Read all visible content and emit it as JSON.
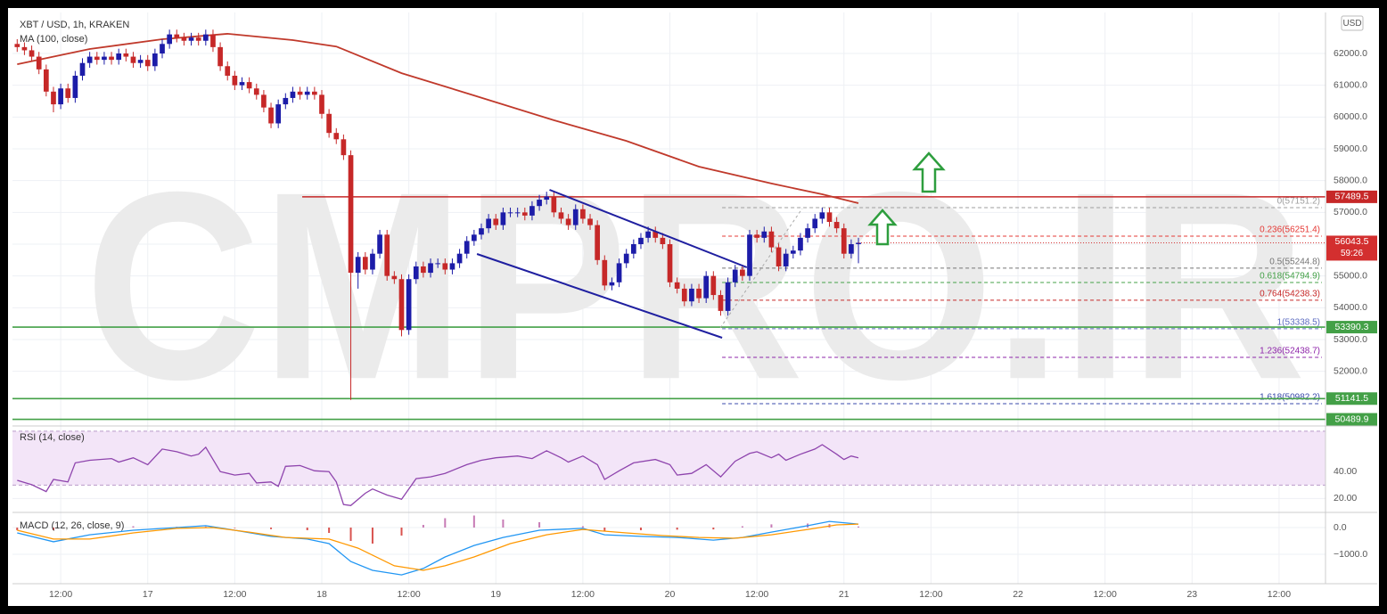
{
  "header": {
    "title": "XBT / USD, 1h, KRAKEN",
    "currency": "USD",
    "watermark": "CMPRO.IR"
  },
  "chart_data": [
    {
      "type": "candlestick",
      "ma_label": "MA (100, close)",
      "xlim": [
        -0.65,
        180.4
      ],
      "xticks": [
        {
          "value": 6,
          "label": "12:00"
        },
        {
          "value": 18,
          "label": "17"
        },
        {
          "value": 30,
          "label": "12:00"
        },
        {
          "value": 42,
          "label": "18"
        },
        {
          "value": 54,
          "label": "12:00"
        },
        {
          "value": 66,
          "label": "19"
        },
        {
          "value": 78,
          "label": "12:00"
        },
        {
          "value": 90,
          "label": "20"
        },
        {
          "value": 102,
          "label": "12:00"
        },
        {
          "value": 114,
          "label": "21"
        },
        {
          "value": 126,
          "label": "12:00"
        },
        {
          "value": 138,
          "label": "22"
        },
        {
          "value": 150,
          "label": "12:00"
        },
        {
          "value": 162,
          "label": "23"
        },
        {
          "value": 174,
          "label": "12:00"
        }
      ],
      "ylim": [
        50280,
        63290
      ],
      "yticks": [
        {
          "value": 52000,
          "label": "52000.0"
        },
        {
          "value": 53000,
          "label": "53000.0"
        },
        {
          "value": 54000,
          "label": "54000.0"
        },
        {
          "value": 55000,
          "label": "55000.0"
        },
        {
          "value": 56000,
          "label": "56000.0"
        },
        {
          "value": 57000,
          "label": "57000.0"
        },
        {
          "value": 58000,
          "label": "58000.0"
        },
        {
          "value": 59000,
          "label": "59000.0"
        },
        {
          "value": 60000,
          "label": "60000.0"
        },
        {
          "value": 61000,
          "label": "61000.0"
        },
        {
          "value": 62000,
          "label": "62000.0"
        }
      ],
      "grid": true,
      "up_color": "#1c1ca8",
      "down_color": "#c62828",
      "open": [
        62300,
        62200,
        62100,
        61900,
        61500,
        60800,
        60400,
        60900,
        60600,
        61300,
        61700,
        61900,
        61800,
        61900,
        61800,
        62000,
        61900,
        61700,
        61800,
        61600,
        62000,
        62300,
        62600,
        62500,
        62400,
        62500,
        62400,
        62600,
        62200,
        61600,
        61300,
        61000,
        61100,
        60900,
        60700,
        60300,
        59800,
        60400,
        60600,
        60800,
        60700,
        60800,
        60700,
        60100,
        59500,
        59300,
        58800,
        55100,
        55600,
        55200,
        55700,
        56300,
        55000,
        54900,
        53300,
        54900,
        55300,
        55100,
        55400,
        55400,
        55200,
        55400,
        55700,
        56100,
        56300,
        56500,
        56800,
        56600,
        57000,
        57000,
        57000,
        56900,
        57200,
        57400,
        57500,
        57000,
        56800,
        56600,
        57100,
        56800,
        56600,
        55500,
        54700,
        54800,
        55400,
        55700,
        56000,
        56200,
        56400,
        56200,
        56000,
        54800,
        54600,
        54200,
        54600,
        54300,
        55000,
        54400,
        53900,
        54800,
        55200,
        55000,
        56300,
        56200,
        56400,
        55900,
        55300,
        55700,
        55800,
        56200,
        56500,
        56800,
        57000,
        56700,
        56500,
        55700,
        56000
      ],
      "high": [
        62450,
        62350,
        62250,
        62050,
        61650,
        60950,
        61050,
        61050,
        61450,
        61850,
        62050,
        62050,
        62050,
        62050,
        62150,
        62150,
        62050,
        61950,
        61950,
        62150,
        62450,
        62750,
        62750,
        62650,
        62650,
        62650,
        62750,
        62750,
        62350,
        61750,
        61450,
        61250,
        61250,
        61050,
        60850,
        60450,
        60550,
        60750,
        60950,
        60950,
        60950,
        60950,
        60850,
        60250,
        59650,
        59450,
        58950,
        55750,
        55750,
        55850,
        56450,
        56450,
        55150,
        55050,
        55050,
        55450,
        55450,
        55550,
        55550,
        55550,
        55550,
        55850,
        56250,
        56450,
        56650,
        56950,
        56950,
        57150,
        57150,
        57150,
        57150,
        57350,
        57550,
        57650,
        57650,
        57150,
        56950,
        57250,
        57250,
        56950,
        56750,
        55650,
        54950,
        55550,
        55850,
        56150,
        56350,
        56550,
        56550,
        56350,
        56150,
        54950,
        54750,
        54750,
        54750,
        55150,
        55150,
        54550,
        54950,
        55350,
        55350,
        56450,
        56450,
        56550,
        56550,
        56050,
        55850,
        55950,
        56350,
        56650,
        56950,
        57150,
        57150,
        56850,
        56650,
        56150,
        56200
      ],
      "low": [
        62050,
        61950,
        61750,
        61350,
        60650,
        60150,
        60250,
        60450,
        60450,
        61150,
        61550,
        61650,
        61650,
        61650,
        61650,
        61750,
        61550,
        61550,
        61450,
        61450,
        61850,
        62150,
        62350,
        62250,
        62250,
        62250,
        62250,
        62050,
        61450,
        61150,
        60850,
        60850,
        60750,
        60550,
        60150,
        59650,
        59650,
        60250,
        60450,
        60550,
        60550,
        60550,
        59950,
        59350,
        59150,
        58650,
        51100,
        54600,
        55050,
        55050,
        55550,
        54850,
        54750,
        53100,
        53150,
        54750,
        54950,
        54950,
        55250,
        55050,
        55050,
        55250,
        55550,
        55950,
        56150,
        56350,
        56450,
        56450,
        56850,
        56850,
        56750,
        56750,
        57050,
        57250,
        56850,
        56650,
        56450,
        56450,
        56650,
        56450,
        55350,
        54550,
        54550,
        54650,
        55250,
        55550,
        55850,
        56050,
        56050,
        55850,
        54650,
        54450,
        54050,
        54050,
        54150,
        54150,
        54250,
        53750,
        53750,
        54650,
        54850,
        54850,
        56050,
        56050,
        55750,
        55150,
        55150,
        55550,
        55650,
        56050,
        56350,
        56650,
        56550,
        56350,
        55550,
        55550,
        55400
      ],
      "close": [
        62200,
        62100,
        61900,
        61500,
        60800,
        60400,
        60900,
        60600,
        61300,
        61700,
        61900,
        61800,
        61900,
        61800,
        62000,
        61900,
        61700,
        61800,
        61600,
        62000,
        62300,
        62600,
        62500,
        62400,
        62500,
        62400,
        62600,
        62200,
        61600,
        61300,
        61000,
        61100,
        60900,
        60700,
        60300,
        59800,
        60400,
        60600,
        60800,
        60700,
        60800,
        60700,
        60100,
        59500,
        59300,
        58800,
        55100,
        55600,
        55200,
        55700,
        56300,
        55000,
        54900,
        53300,
        54900,
        55300,
        55100,
        55400,
        55400,
        55200,
        55400,
        55700,
        56100,
        56300,
        56500,
        56800,
        56600,
        57000,
        57000,
        57000,
        56900,
        57200,
        57400,
        57500,
        57000,
        56800,
        56600,
        57100,
        56800,
        56600,
        55500,
        54700,
        54800,
        55400,
        55700,
        56000,
        56200,
        56400,
        56200,
        56000,
        54800,
        54600,
        54200,
        54600,
        54300,
        55000,
        54400,
        53900,
        54800,
        55200,
        55000,
        56300,
        56200,
        56400,
        55900,
        55300,
        55700,
        55800,
        56200,
        56500,
        56800,
        57000,
        56700,
        56500,
        55700,
        56000,
        56043.5
      ],
      "ma": {
        "color": "#c0392b",
        "x": [
          0,
          10,
          20,
          29,
          38,
          44,
          53,
          63,
          74,
          84,
          94,
          104,
          111,
          116
        ],
        "values": [
          61660,
          62140,
          62450,
          62620,
          62420,
          62220,
          61380,
          60680,
          59900,
          59250,
          58440,
          57910,
          57570,
          57290
        ]
      },
      "levels": [
        {
          "value": 57489.5,
          "color": "#c62828",
          "start": 39.3
        },
        {
          "value": 53390.3,
          "color": "#43a047"
        },
        {
          "value": 51141.5,
          "color": "#43a047"
        },
        {
          "value": 50489.9,
          "color": "#43a047"
        }
      ],
      "last": {
        "value": 56043.5,
        "countdown": "59:26",
        "color": "#d32f2f"
      },
      "fib_start": 97.2,
      "fib": [
        {
          "label": "0(57151.2)",
          "value": 57151.2,
          "color": "#9e9e9e"
        },
        {
          "label": "0.236(56251.4)",
          "value": 56251.4,
          "color": "#e53935"
        },
        {
          "label": "0.5(55244.8)",
          "value": 55244.8,
          "color": "#757575"
        },
        {
          "label": "0.618(54794.9)",
          "value": 54794.9,
          "color": "#43a047"
        },
        {
          "label": "0.764(54238.3)",
          "value": 54238.3,
          "color": "#c62828"
        },
        {
          "label": "1(53338.5)",
          "value": 53338.5,
          "color": "#5c6bc0"
        },
        {
          "label": "1.236(52438.7)",
          "value": 52438.7,
          "color": "#8e24aa"
        },
        {
          "label": "1.618(50982.2)",
          "value": 50982.2,
          "color": "#3949ab"
        }
      ],
      "trendlines": [
        {
          "color": "#1f1fa0",
          "x": [
            73.4,
            100.6
          ],
          "values": [
            57711,
            55272
          ]
        },
        {
          "color": "#1f1fa0",
          "x": [
            63.4,
            97.2
          ],
          "values": [
            55692,
            53057
          ]
        }
      ]
    },
    {
      "type": "line",
      "title": "RSI (14, close)",
      "ylim": [
        11,
        72.6
      ],
      "yticks": [
        {
          "value": 20,
          "label": "20.00"
        },
        {
          "value": 40,
          "label": "40.00"
        }
      ],
      "band": [
        30,
        70
      ],
      "series": [
        {
          "color": "#8e44ad",
          "x": [
            0,
            2,
            4,
            5,
            7,
            8,
            10,
            13,
            14,
            16,
            18,
            20,
            22,
            24,
            25,
            26,
            28,
            30,
            32,
            33,
            35,
            36,
            37,
            39,
            41,
            43,
            44,
            45,
            46,
            48,
            49,
            51,
            53,
            55,
            57,
            59,
            62,
            64,
            66,
            69,
            71,
            73,
            75,
            76,
            78,
            80,
            81,
            83,
            85,
            88,
            90,
            91,
            93,
            95,
            97,
            99,
            101,
            102,
            104,
            105,
            106,
            108,
            110,
            111,
            113,
            114,
            115,
            116
          ],
          "values": [
            33.5,
            30.3,
            25.2,
            34.2,
            32.3,
            46.5,
            48.4,
            49.7,
            47.1,
            50.3,
            45.2,
            56.8,
            54.8,
            51.6,
            52.9,
            58.1,
            40,
            37.4,
            38.7,
            31.6,
            32.3,
            29,
            43.9,
            44.5,
            40.6,
            40,
            32.3,
            15.5,
            14.8,
            23.9,
            27.1,
            22.6,
            19.4,
            34.8,
            36.1,
            38.7,
            45.2,
            48.4,
            50.3,
            51.6,
            49.7,
            55.5,
            50.3,
            47.1,
            51.6,
            45.2,
            34.2,
            40.6,
            46.5,
            49,
            45.2,
            37.4,
            38.7,
            45.2,
            36.1,
            47.7,
            53.5,
            54.8,
            50.3,
            52.9,
            48.4,
            52.9,
            56.8,
            60,
            52.9,
            49,
            51.6,
            50.3
          ]
        }
      ]
    },
    {
      "type": "line",
      "title": "MACD (12, 26, close, 9)",
      "ylim": [
        -2100,
        500
      ],
      "yticks": [
        {
          "value": 0,
          "label": "0.0"
        },
        {
          "value": -1000,
          "label": "−1000.0"
        }
      ],
      "histogram": {
        "up_color": "#c77bb5",
        "down_color": "#d9534f",
        "x": [
          0,
          5,
          10,
          16,
          22,
          26,
          30,
          35,
          40,
          43,
          46,
          49,
          53,
          56,
          59,
          63,
          67,
          72,
          78,
          81,
          86,
          91,
          96,
          100,
          104,
          109,
          112,
          116
        ],
        "values": [
          -100,
          -100,
          0,
          50,
          30,
          40,
          -20,
          -60,
          -100,
          -200,
          -500,
          -600,
          -300,
          100,
          350,
          450,
          300,
          200,
          50,
          -150,
          -100,
          -80,
          -70,
          50,
          120,
          150,
          130,
          40
        ]
      },
      "series": [
        {
          "color": "#2196f3",
          "x": [
            0,
            5,
            10,
            16,
            22,
            26,
            30,
            35,
            40,
            43,
            46,
            49,
            53,
            56,
            59,
            63,
            67,
            72,
            78,
            81,
            86,
            91,
            96,
            100,
            104,
            109,
            112,
            116
          ],
          "values": [
            -200,
            -530,
            -270,
            -100,
            0,
            70,
            -100,
            -330,
            -430,
            -600,
            -1270,
            -1600,
            -1770,
            -1530,
            -1100,
            -670,
            -370,
            -100,
            -30,
            -270,
            -330,
            -370,
            -470,
            -370,
            -170,
            70,
            230,
            130
          ]
        },
        {
          "color": "#ff9800",
          "x": [
            0,
            5,
            10,
            16,
            22,
            27,
            32,
            37,
            43,
            47,
            52,
            56,
            59,
            63,
            68,
            73,
            78,
            84,
            89,
            94,
            99,
            104,
            109,
            113,
            116
          ],
          "values": [
            -100,
            -430,
            -430,
            -200,
            -30,
            0,
            -170,
            -370,
            -430,
            -770,
            -1430,
            -1600,
            -1430,
            -1100,
            -600,
            -270,
            -70,
            -200,
            -300,
            -370,
            -400,
            -270,
            -70,
            100,
            130
          ]
        }
      ]
    }
  ]
}
